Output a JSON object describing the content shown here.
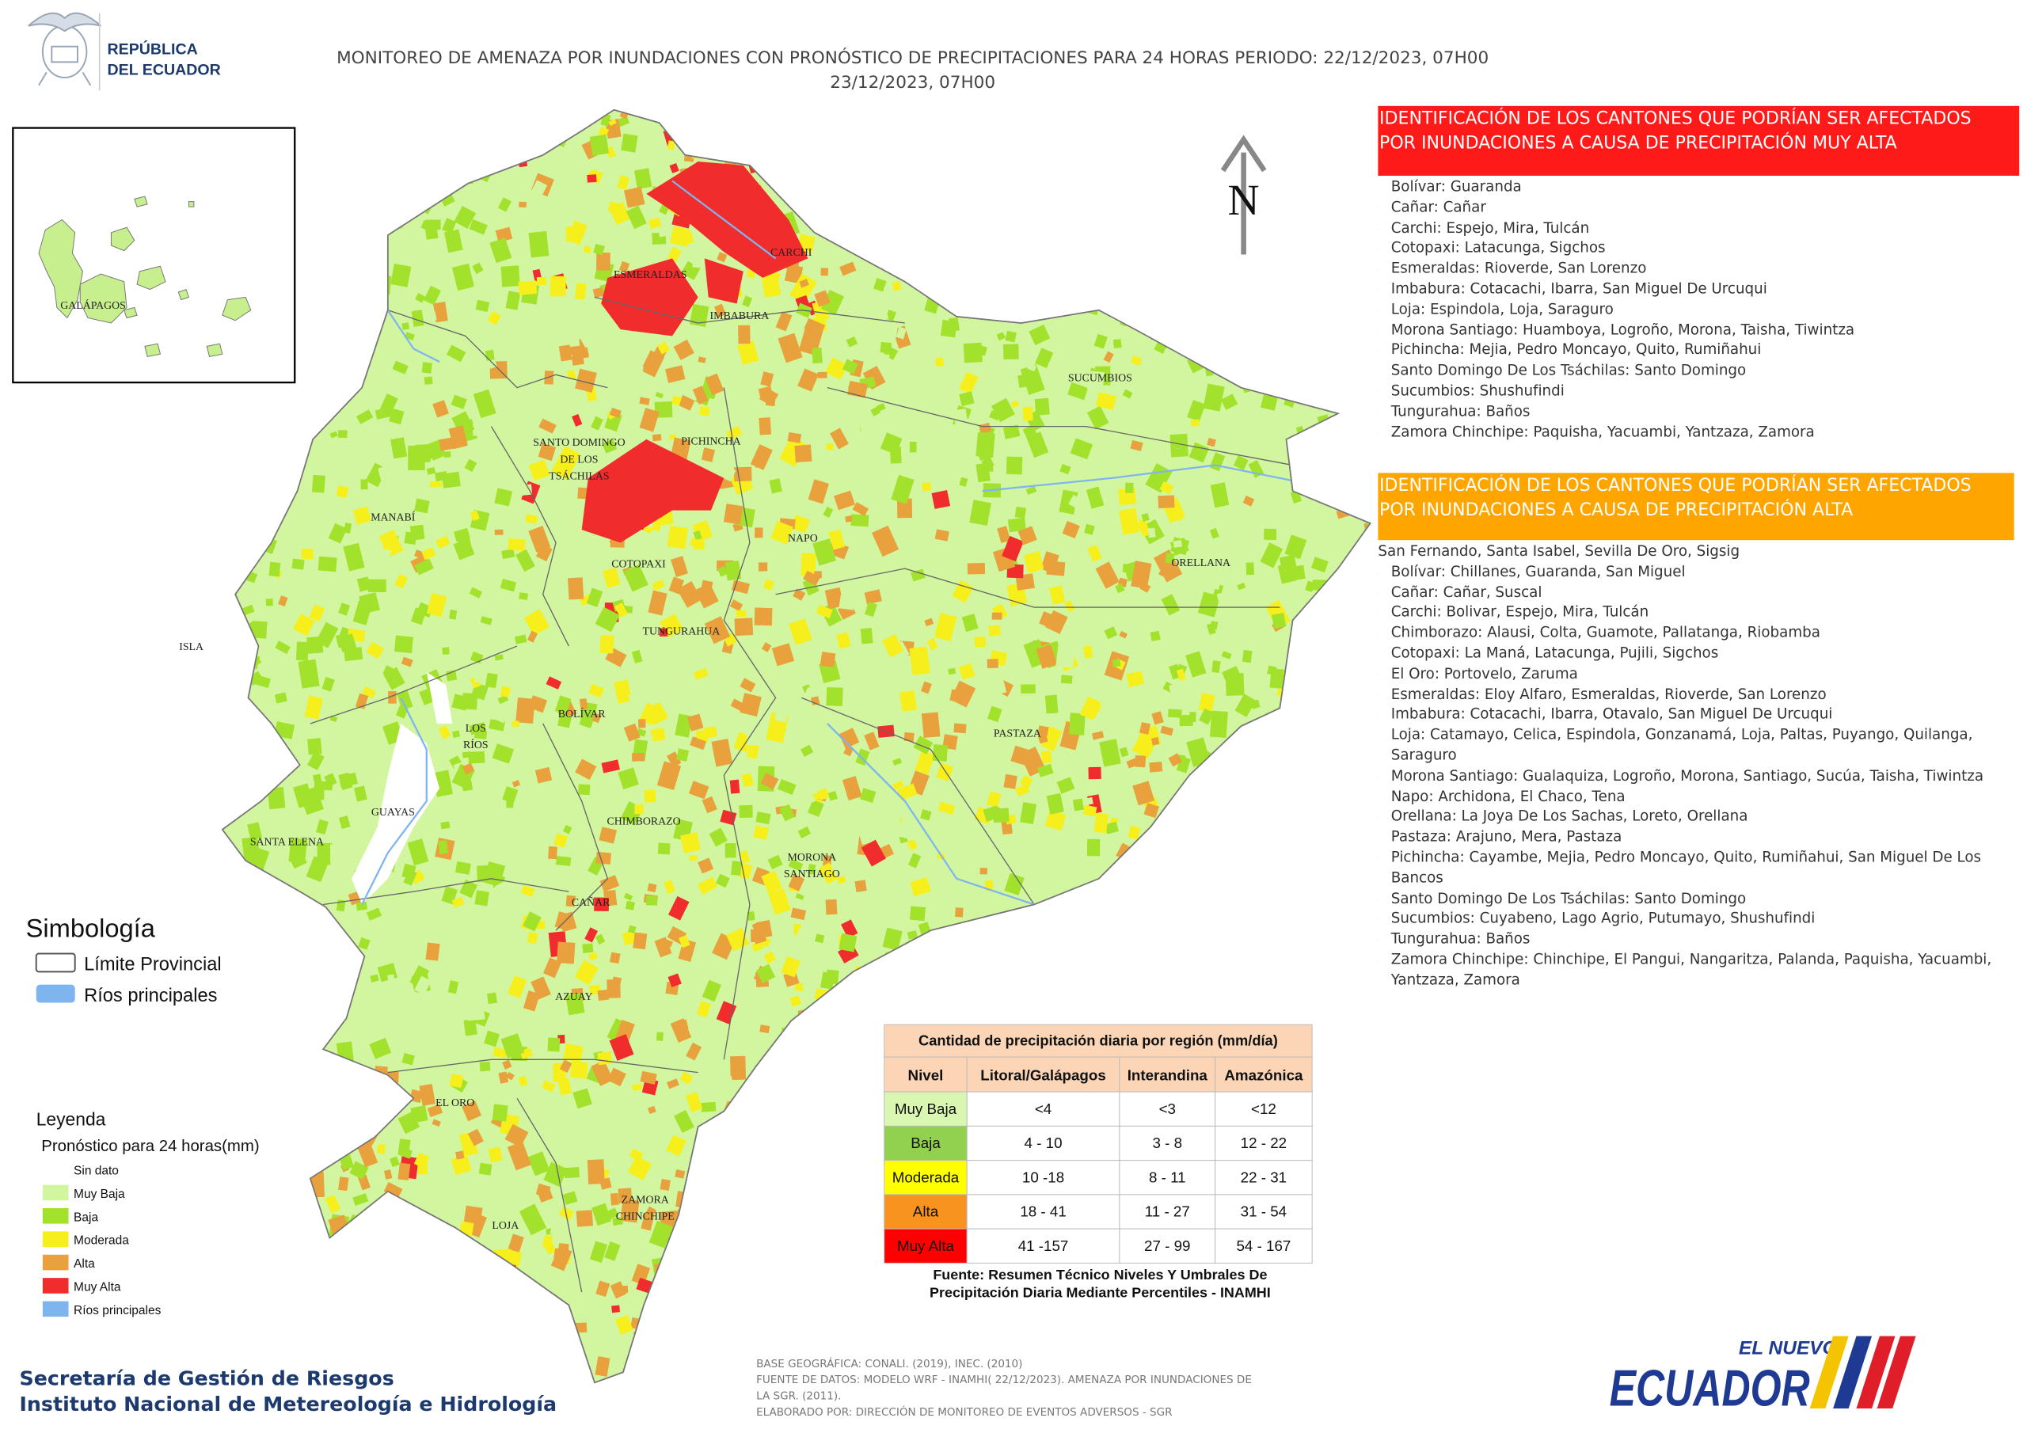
{
  "header": {
    "logo_lines": [
      "REPÚBLICA",
      "DEL ECUADOR"
    ],
    "title_lines": [
      "MONITOREO DE AMENAZA POR INUNDACIONES  CON PRONÓSTICO DE  PRECIPITACIONES PARA 24 HORAS  PERIODO: 22/12/2023, 07H00",
      "23/12/2023, 07H00"
    ]
  },
  "inset": {
    "label": "GALÁPAGOS"
  },
  "north_arrow": {
    "label": "N"
  },
  "map": {
    "labels": [
      [
        "CARCHI"
      ],
      [
        "ESMERALDAS"
      ],
      [
        "IMBABURA"
      ],
      [
        "SUCUMBIOS"
      ],
      [
        "SANTO DOMINGO",
        "DE LOS",
        "TSÁCHILAS"
      ],
      [
        "PICHINCHA"
      ],
      [
        "MANABÍ"
      ],
      [
        "NAPO"
      ],
      [
        "ORELLANA"
      ],
      [
        "COTOPAXI"
      ],
      [
        "TUNGURAHUA"
      ],
      [
        "ISLA"
      ],
      [
        "BOLÍVAR"
      ],
      [
        "LOS",
        "RÍOS"
      ],
      [
        "PASTAZA"
      ],
      [
        "GUAYAS"
      ],
      [
        "CHIMBORAZO"
      ],
      [
        "SANTA ELENA"
      ],
      [
        "MORONA",
        "SANTIAGO"
      ],
      [
        "CAÑAR"
      ],
      [
        "AZUAY"
      ],
      [
        "EL ORO"
      ],
      [
        "ZAMORA",
        "CHINCHIPE"
      ],
      [
        "LOJA"
      ]
    ]
  },
  "very_high": {
    "title_lines": [
      "IDENTIFICACIÓN DE LOS CANTONES QUE PODRÍAN SER AFECTADOS",
      "POR INUNDACIONES  A CAUSA DE PRECIPITACIÓN MUY ALTA"
    ],
    "color": "#ff1a1a",
    "items": [
      "Bolívar: Guaranda",
      "Cañar: Cañar",
      "Carchi: Espejo, Mira, Tulcán",
      "Cotopaxi: Latacunga, Sigchos",
      "Esmeraldas: Rioverde, San Lorenzo",
      "Imbabura: Cotacachi, Ibarra, San Miguel De Urcuqui",
      "Loja: Espindola, Loja, Saraguro",
      "Morona Santiago: Huamboya, Logroño, Morona, Taisha, Tiwintza",
      "Pichincha: Mejia, Pedro Moncayo, Quito, Rumiñahui",
      "Santo Domingo De Los Tsáchilas: Santo Domingo",
      "Sucumbios: Shushufindi",
      "Tungurahua: Baños",
      "Zamora Chinchipe: Paquisha, Yacuambi, Yantzaza, Zamora"
    ]
  },
  "high": {
    "title_lines": [
      "IDENTIFICACIÓN DE LOS CANTONES QUE  PODRÍAN SER AFECTADOS",
      "POR INUNDACIONES  A CAUSA DE PRECIPITACIÓN  ALTA"
    ],
    "color": "#ffa500",
    "items": [
      "San Fernando, Santa Isabel, Sevilla De Oro, Sigsig",
      "Bolívar: Chillanes, Guaranda, San Miguel",
      "Cañar: Cañar, Suscal",
      "Carchi: Bolivar, Espejo, Mira, Tulcán",
      "Chimborazo: Alausi, Colta, Guamote, Pallatanga, Riobamba",
      "Cotopaxi: La Maná, Latacunga, Pujili, Sigchos",
      "El Oro: Portovelo, Zaruma",
      "Esmeraldas: Eloy Alfaro, Esmeraldas, Rioverde, San Lorenzo",
      "Imbabura: Cotacachi, Ibarra, Otavalo, San Miguel De Urcuqui",
      "Loja: Catamayo, Celica, Espindola, Gonzanamá, Loja, Paltas, Puyango, Quilanga, Saraguro",
      "Morona Santiago: Gualaquiza, Logroño, Morona, Santiago, Sucúa, Taisha, Tiwintza",
      "Napo: Archidona, El Chaco, Tena",
      "Orellana: La Joya De Los Sachas, Loreto, Orellana",
      "Pastaza: Arajuno, Mera, Pastaza",
      "Pichincha: Cayambe, Mejia, Pedro Moncayo, Quito, Rumiñahui, San Miguel De Los Bancos",
      "Santo Domingo De Los Tsáchilas: Santo Domingo",
      "Sucumbios: Cuyabeno, Lago Agrio, Putumayo, Shushufindi",
      "Tungurahua: Baños",
      "Zamora Chinchipe: Chinchipe, El Pangui, Nangaritza, Palanda, Paquisha, Yacuambi, Yantzaza, Zamora"
    ]
  },
  "symbology": {
    "title": "Simbología",
    "items": [
      "Límite Provincial",
      "Ríos principales"
    ]
  },
  "legend": {
    "title": "Leyenda",
    "subtitle": "Pronóstico para 24 horas(mm)",
    "items": [
      {
        "label": "Sin dato",
        "color": "#ffffff"
      },
      {
        "label": "Muy Baja",
        "color": "#d2f5a0"
      },
      {
        "label": "Baja",
        "color": "#a3e22c"
      },
      {
        "label": "Moderada",
        "color": "#f7ef1c"
      },
      {
        "label": "Alta",
        "color": "#e8a13c"
      },
      {
        "label": "Muy Alta",
        "color": "#f02c2c"
      },
      {
        "label": "Ríos principales",
        "color": "#7fb5ef"
      }
    ]
  },
  "table": {
    "title": "Cantidad de precipitación diaria por región (mm/día)",
    "columns": [
      "Nivel",
      "Litoral/Galápagos",
      "Interandina",
      "Amazónica"
    ],
    "rows": [
      [
        "Muy Baja",
        "<4",
        "<3",
        "<12"
      ],
      [
        "Baja",
        "4 - 10",
        "3 - 8",
        "12 - 22"
      ],
      [
        "Moderada",
        "10 -18",
        "8 - 11",
        "22 - 31"
      ],
      [
        "Alta",
        "18 - 41",
        "11 - 27",
        "31 - 54"
      ],
      [
        "Muy Alta",
        "41 -157",
        "27 - 99",
        "54 - 167"
      ]
    ],
    "row_colors": [
      "#d9f7b0",
      "#92d050",
      "#ffff00",
      "#f7931e",
      "#ff0000"
    ],
    "source_lines": [
      "Fuente: Resumen Técnico Niveles Y Umbrales De",
      "Precipitación Diaria Mediante Percentiles - INAMHI"
    ]
  },
  "footer": {
    "org_lines": [
      "Secretaría de Gestión de Riesgos",
      "Instituto Nacional de Metereología e Hidrología"
    ],
    "notes": [
      "BASE GEOGRÁFICA: CONALI. (2019), INEC. (2010)",
      "FUENTE DE DATOS: MODELO WRF - INAMHI( 22/12/2023).  AMENAZA POR INUNDACIONES DE",
      "LA SGR. (2011).",
      "ELABORADO POR: DIRECCIÓN DE MONITOREO DE EVENTOS ADVERSOS - SGR"
    ],
    "brand_lines": [
      "EL NUEVO",
      "ECUADOR"
    ]
  }
}
